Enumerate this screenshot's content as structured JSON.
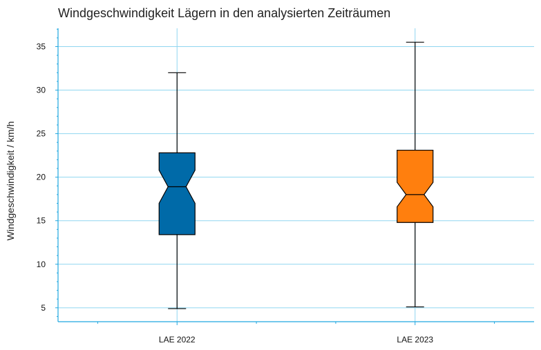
{
  "chart_data": {
    "type": "boxplot",
    "title": "Windgeschwindigkeit Lägern in den analysierten Zeiträumen",
    "xlabel": "",
    "ylabel": "Windgeschwindigkeit / km/h",
    "categories": [
      "LAE 2022",
      "LAE 2023"
    ],
    "boxes": [
      {
        "category": "LAE 2022",
        "whisker_low": 4.9,
        "q1": 13.4,
        "notch_low": 17.0,
        "median": 18.9,
        "notch_high": 20.8,
        "q3": 22.8,
        "whisker_high": 32.0,
        "color": "#006aa8"
      },
      {
        "category": "LAE 2023",
        "whisker_low": 5.1,
        "q1": 14.8,
        "notch_low": 16.6,
        "median": 18.0,
        "notch_high": 19.4,
        "q3": 23.1,
        "whisker_high": 35.5,
        "color": "#ff7f0e"
      }
    ],
    "yticks": [
      5,
      10,
      15,
      20,
      25,
      30,
      35
    ],
    "ylim": [
      3.4,
      37.1
    ],
    "grid": true,
    "grid_color": "#8fd6f0",
    "axis_color": "#1fa7e0",
    "notched": true
  }
}
